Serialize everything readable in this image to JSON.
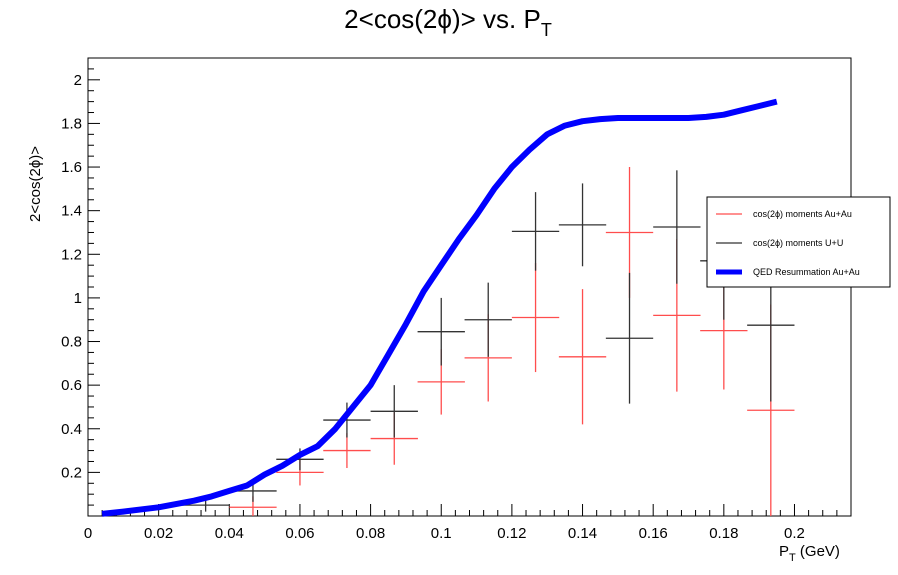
{
  "chart_data": {
    "type": "scatter",
    "title": "2<cos(2ϕ)> vs. P",
    "title_subscript": "T",
    "xlabel": "P",
    "xlabel_subscript": "T",
    "xlabel_suffix": " (GeV)",
    "ylabel": "2<cos(2ϕ)>",
    "xlim": [
      0,
      0.216
    ],
    "ylim": [
      0,
      2.1
    ],
    "xticks": [
      0,
      0.02,
      0.04,
      0.06,
      0.08,
      0.1,
      0.12,
      0.14,
      0.16,
      0.18,
      0.2
    ],
    "xtick_labels": [
      "0",
      "0.02",
      "0.04",
      "0.06",
      "0.08",
      "0.1",
      "0.12",
      "0.14",
      "0.16",
      "0.18",
      "0.2"
    ],
    "yticks": [
      0.2,
      0.4,
      0.6,
      0.8,
      1.0,
      1.2,
      1.4,
      1.6,
      1.8,
      2.0
    ],
    "ytick_labels": [
      "0.2",
      "0.4",
      "0.6",
      "0.8",
      "1",
      "1.2",
      "1.4",
      "1.6",
      "1.8",
      "2"
    ],
    "grid": false,
    "legend_position": "right",
    "colors": {
      "auau": "#ff4d4d",
      "uu": "#333333",
      "qed": "#0000ff"
    },
    "series": [
      {
        "name": "cos(2ϕ) moments Au+Au",
        "color": "#ff4d4d",
        "points": [
          {
            "x": 0.0467,
            "y": 0.04,
            "xerr": 0.0067,
            "yerr": 0.05
          },
          {
            "x": 0.06,
            "y": 0.2,
            "xerr": 0.0067,
            "yerr": 0.06
          },
          {
            "x": 0.0733,
            "y": 0.3,
            "xerr": 0.0067,
            "yerr": 0.08
          },
          {
            "x": 0.0867,
            "y": 0.355,
            "xerr": 0.0067,
            "yerr": 0.12
          },
          {
            "x": 0.1,
            "y": 0.615,
            "xerr": 0.0067,
            "yerr": 0.15
          },
          {
            "x": 0.1133,
            "y": 0.725,
            "xerr": 0.0067,
            "yerr": 0.2
          },
          {
            "x": 0.1267,
            "y": 0.91,
            "xerr": 0.0067,
            "yerr": 0.25
          },
          {
            "x": 0.14,
            "y": 0.73,
            "xerr": 0.0067,
            "yerr": 0.31
          },
          {
            "x": 0.1533,
            "y": 1.3,
            "xerr": 0.0067,
            "yerr": 0.3
          },
          {
            "x": 0.1667,
            "y": 0.92,
            "xerr": 0.0067,
            "yerr": 0.35
          },
          {
            "x": 0.18,
            "y": 0.85,
            "xerr": 0.0067,
            "yerr": 0.27
          },
          {
            "x": 0.1933,
            "y": 0.485,
            "xerr": 0.0067,
            "yerr": 0.485
          }
        ]
      },
      {
        "name": "cos(2ϕ) moments U+U",
        "color": "#333333",
        "points": [
          {
            "x": 0.0333,
            "y": 0.05,
            "xerr": 0.0067,
            "yerr": 0.03
          },
          {
            "x": 0.0467,
            "y": 0.115,
            "xerr": 0.0067,
            "yerr": 0.05
          },
          {
            "x": 0.06,
            "y": 0.26,
            "xerr": 0.0067,
            "yerr": 0.05
          },
          {
            "x": 0.0733,
            "y": 0.44,
            "xerr": 0.0067,
            "yerr": 0.08
          },
          {
            "x": 0.0867,
            "y": 0.48,
            "xerr": 0.0067,
            "yerr": 0.12
          },
          {
            "x": 0.1,
            "y": 0.845,
            "xerr": 0.0067,
            "yerr": 0.155
          },
          {
            "x": 0.1133,
            "y": 0.9,
            "xerr": 0.0067,
            "yerr": 0.17
          },
          {
            "x": 0.1267,
            "y": 1.305,
            "xerr": 0.0067,
            "yerr": 0.18
          },
          {
            "x": 0.14,
            "y": 1.335,
            "xerr": 0.0067,
            "yerr": 0.19
          },
          {
            "x": 0.1533,
            "y": 0.815,
            "xerr": 0.0067,
            "yerr": 0.3
          },
          {
            "x": 0.1667,
            "y": 1.325,
            "xerr": 0.0067,
            "yerr": 0.26
          },
          {
            "x": 0.18,
            "y": 1.17,
            "xerr": 0.0067,
            "yerr": 0.27
          },
          {
            "x": 0.1933,
            "y": 0.875,
            "xerr": 0.0067,
            "yerr": 0.35
          }
        ]
      },
      {
        "name": "QED Resummation Au+Au",
        "color": "#0000ff",
        "kind": "line",
        "x": [
          0.004,
          0.01,
          0.02,
          0.03,
          0.035,
          0.04,
          0.045,
          0.05,
          0.055,
          0.06,
          0.065,
          0.07,
          0.075,
          0.08,
          0.085,
          0.09,
          0.095,
          0.1,
          0.105,
          0.11,
          0.115,
          0.12,
          0.125,
          0.13,
          0.135,
          0.14,
          0.145,
          0.15,
          0.155,
          0.16,
          0.165,
          0.17,
          0.175,
          0.18,
          0.185,
          0.19,
          0.195
        ],
        "y": [
          0.01,
          0.02,
          0.04,
          0.07,
          0.09,
          0.115,
          0.14,
          0.19,
          0.23,
          0.28,
          0.32,
          0.4,
          0.5,
          0.6,
          0.74,
          0.88,
          1.03,
          1.15,
          1.27,
          1.38,
          1.5,
          1.6,
          1.68,
          1.75,
          1.79,
          1.81,
          1.82,
          1.825,
          1.825,
          1.825,
          1.825,
          1.825,
          1.83,
          1.84,
          1.86,
          1.88,
          1.9
        ]
      }
    ],
    "legend": {
      "entries": [
        {
          "label": "cos(2ϕ) moments Au+Au",
          "style": "thin",
          "color": "#ff4d4d"
        },
        {
          "label": "cos(2ϕ) moments U+U",
          "style": "thin",
          "color": "#333333"
        },
        {
          "label": "QED Resummation Au+Au",
          "style": "thick",
          "color": "#0000ff"
        }
      ]
    }
  }
}
